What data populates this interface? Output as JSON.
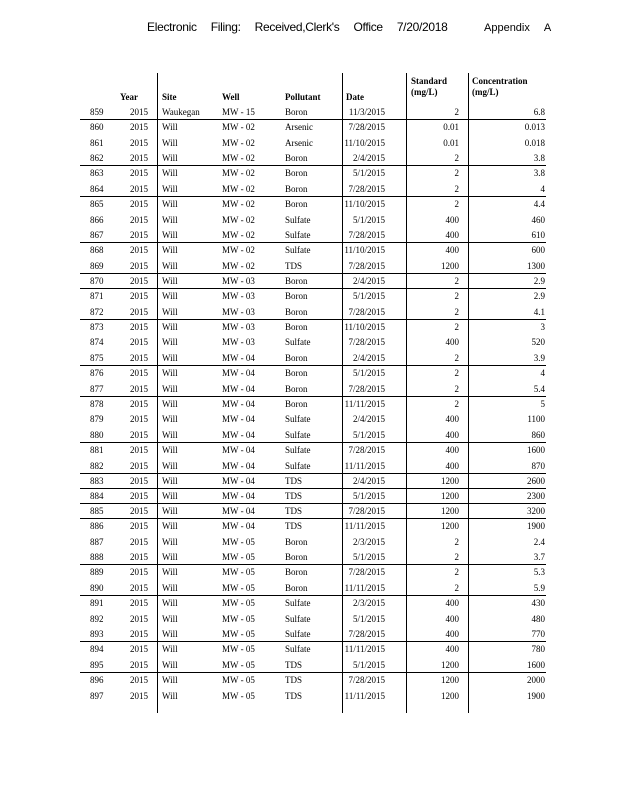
{
  "header": {
    "parts": [
      "Electronic",
      "Filing:",
      "Received,Clerk's",
      "Office",
      "7/20/2018"
    ],
    "appendix": [
      "Appendix",
      "A"
    ]
  },
  "table": {
    "columns": {
      "year": "Year",
      "site": "Site",
      "well": "Well",
      "pollutant": "Pollutant",
      "date": "Date",
      "standard": [
        "Standard",
        "(mg/L)"
      ],
      "concentration": [
        "Concentration",
        "(mg/L)"
      ]
    },
    "rows": [
      [
        "859",
        "2015",
        "Waukegan",
        "MW - 15",
        "Boron",
        "11/3/2015",
        "2",
        "6.8"
      ],
      [
        "860",
        "2015",
        "Will",
        "MW - 02",
        "Arsenic",
        "7/28/2015",
        "0.01",
        "0.013"
      ],
      [
        "861",
        "2015",
        "Will",
        "MW - 02",
        "Arsenic",
        "11/10/2015",
        "0.01",
        "0.018"
      ],
      [
        "862",
        "2015",
        "Will",
        "MW - 02",
        "Boron",
        "2/4/2015",
        "2",
        "3.8"
      ],
      [
        "863",
        "2015",
        "Will",
        "MW - 02",
        "Boron",
        "5/1/2015",
        "2",
        "3.8"
      ],
      [
        "864",
        "2015",
        "Will",
        "MW - 02",
        "Boron",
        "7/28/2015",
        "2",
        "4"
      ],
      [
        "865",
        "2015",
        "Will",
        "MW - 02",
        "Boron",
        "11/10/2015",
        "2",
        "4.4"
      ],
      [
        "866",
        "2015",
        "Will",
        "MW - 02",
        "Sulfate",
        "5/1/2015",
        "400",
        "460"
      ],
      [
        "867",
        "2015",
        "Will",
        "MW - 02",
        "Sulfate",
        "7/28/2015",
        "400",
        "610"
      ],
      [
        "868",
        "2015",
        "Will",
        "MW - 02",
        "Sulfate",
        "11/10/2015",
        "400",
        "600"
      ],
      [
        "869",
        "2015",
        "Will",
        "MW - 02",
        "TDS",
        "7/28/2015",
        "1200",
        "1300"
      ],
      [
        "870",
        "2015",
        "Will",
        "MW - 03",
        "Boron",
        "2/4/2015",
        "2",
        "2.9"
      ],
      [
        "871",
        "2015",
        "Will",
        "MW - 03",
        "Boron",
        "5/1/2015",
        "2",
        "2.9"
      ],
      [
        "872",
        "2015",
        "Will",
        "MW - 03",
        "Boron",
        "7/28/2015",
        "2",
        "4.1"
      ],
      [
        "873",
        "2015",
        "Will",
        "MW - 03",
        "Boron",
        "11/10/2015",
        "2",
        "3"
      ],
      [
        "874",
        "2015",
        "Will",
        "MW - 03",
        "Sulfate",
        "7/28/2015",
        "400",
        "520"
      ],
      [
        "875",
        "2015",
        "Will",
        "MW - 04",
        "Boron",
        "2/4/2015",
        "2",
        "3.9"
      ],
      [
        "876",
        "2015",
        "Will",
        "MW - 04",
        "Boron",
        "5/1/2015",
        "2",
        "4"
      ],
      [
        "877",
        "2015",
        "Will",
        "MW - 04",
        "Boron",
        "7/28/2015",
        "2",
        "5.4"
      ],
      [
        "878",
        "2015",
        "Will",
        "MW - 04",
        "Boron",
        "11/11/2015",
        "2",
        "5"
      ],
      [
        "879",
        "2015",
        "Will",
        "MW - 04",
        "Sulfate",
        "2/4/2015",
        "400",
        "1100"
      ],
      [
        "880",
        "2015",
        "Will",
        "MW - 04",
        "Sulfate",
        "5/1/2015",
        "400",
        "860"
      ],
      [
        "881",
        "2015",
        "Will",
        "MW - 04",
        "Sulfate",
        "7/28/2015",
        "400",
        "1600"
      ],
      [
        "882",
        "2015",
        "Will",
        "MW - 04",
        "Sulfate",
        "11/11/2015",
        "400",
        "870"
      ],
      [
        "883",
        "2015",
        "Will",
        "MW - 04",
        "TDS",
        "2/4/2015",
        "1200",
        "2600"
      ],
      [
        "884",
        "2015",
        "Will",
        "MW - 04",
        "TDS",
        "5/1/2015",
        "1200",
        "2300"
      ],
      [
        "885",
        "2015",
        "Will",
        "MW - 04",
        "TDS",
        "7/28/2015",
        "1200",
        "3200"
      ],
      [
        "886",
        "2015",
        "Will",
        "MW - 04",
        "TDS",
        "11/11/2015",
        "1200",
        "1900"
      ],
      [
        "887",
        "2015",
        "Will",
        "MW - 05",
        "Boron",
        "2/3/2015",
        "2",
        "2.4"
      ],
      [
        "888",
        "2015",
        "Will",
        "MW - 05",
        "Boron",
        "5/1/2015",
        "2",
        "3.7"
      ],
      [
        "889",
        "2015",
        "Will",
        "MW - 05",
        "Boron",
        "7/28/2015",
        "2",
        "5.3"
      ],
      [
        "890",
        "2015",
        "Will",
        "MW - 05",
        "Boron",
        "11/11/2015",
        "2",
        "5.9"
      ],
      [
        "891",
        "2015",
        "Will",
        "MW - 05",
        "Sulfate",
        "2/3/2015",
        "400",
        "430"
      ],
      [
        "892",
        "2015",
        "Will",
        "MW - 05",
        "Sulfate",
        "5/1/2015",
        "400",
        "480"
      ],
      [
        "893",
        "2015",
        "Will",
        "MW - 05",
        "Sulfate",
        "7/28/2015",
        "400",
        "770"
      ],
      [
        "894",
        "2015",
        "Will",
        "MW - 05",
        "Sulfate",
        "11/11/2015",
        "400",
        "780"
      ],
      [
        "895",
        "2015",
        "Will",
        "MW - 05",
        "TDS",
        "5/1/2015",
        "1200",
        "1600"
      ],
      [
        "896",
        "2015",
        "Will",
        "MW - 05",
        "TDS",
        "7/28/2015",
        "1200",
        "2000"
      ],
      [
        "897",
        "2015",
        "Will",
        "MW - 05",
        "TDS",
        "11/11/2015",
        "1200",
        "1900"
      ]
    ]
  }
}
